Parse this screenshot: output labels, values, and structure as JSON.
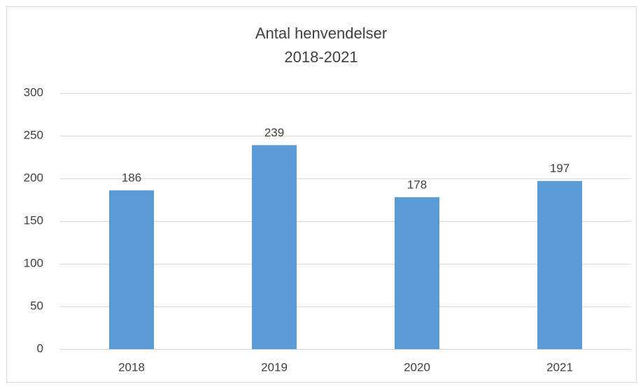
{
  "chart_data": {
    "type": "bar",
    "title": "Antal henvendelser",
    "subtitle": "2018-2021",
    "categories": [
      "2018",
      "2019",
      "2020",
      "2021"
    ],
    "values": [
      186,
      239,
      178,
      197
    ],
    "color": "#5b9bd5",
    "ylim": [
      0,
      300
    ],
    "yticks": [
      0,
      50,
      100,
      150,
      200,
      250,
      300
    ],
    "grid": true,
    "data_labels": true
  }
}
